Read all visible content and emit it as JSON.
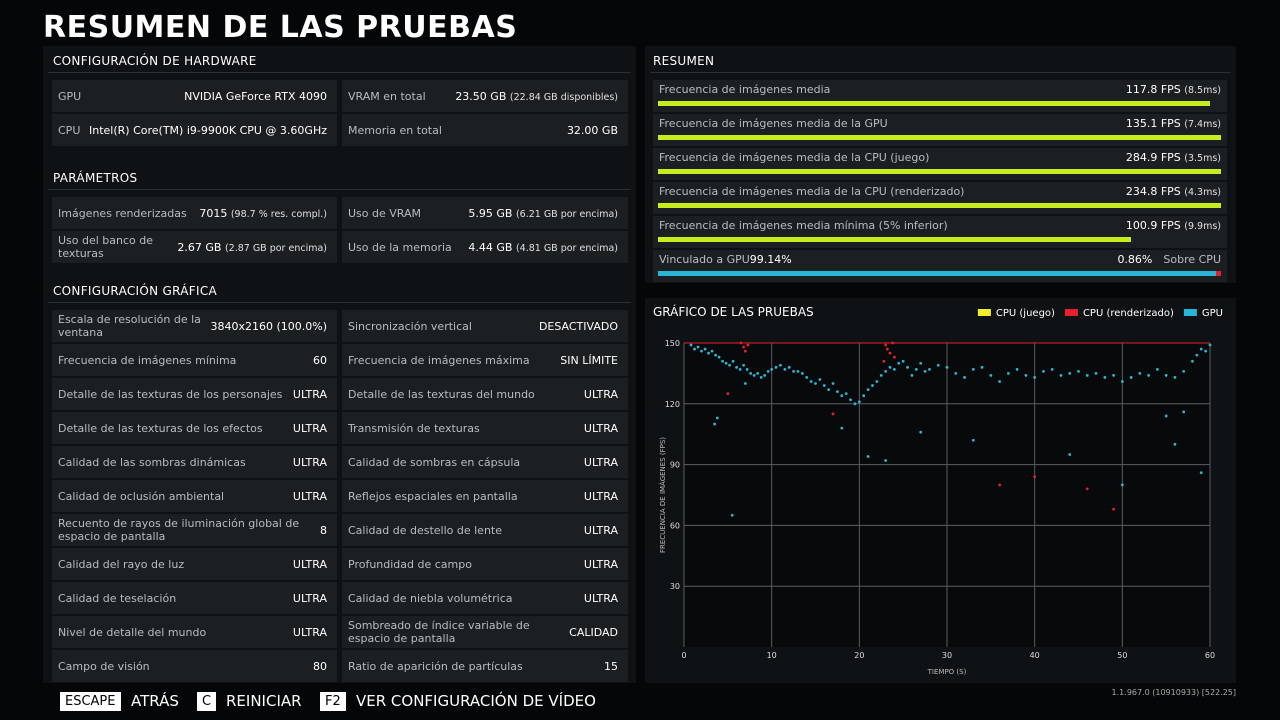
{
  "header": {
    "title": "RESUMEN DE LAS PRUEBAS"
  },
  "hardware": {
    "title": "CONFIGURACIÓN DE HARDWARE",
    "cells": [
      {
        "label": "GPU",
        "value": "NVIDIA GeForce RTX 4090"
      },
      {
        "label": "VRAM en total",
        "value": "23.50 GB",
        "note": "(22.84 GB disponibles)"
      },
      {
        "label": "CPU",
        "value": "Intel(R) Core(TM) i9-9900K CPU @ 3.60GHz"
      },
      {
        "label": "Memoria en total",
        "value": "32.00 GB"
      }
    ]
  },
  "parameters": {
    "title": "PARÁMETROS",
    "cells": [
      {
        "label": "Imágenes renderizadas",
        "value": "7015",
        "note": "(98.7 % res. compl.)"
      },
      {
        "label": "Uso de VRAM",
        "value": "5.95 GB",
        "note": "(6.21 GB por encima)"
      },
      {
        "label": "Uso del banco de texturas",
        "value": "2.67 GB",
        "note": "(2.87 GB por encima)"
      },
      {
        "label": "Uso de la memoria",
        "value": "4.44 GB",
        "note": "(4.81 GB por encima)"
      }
    ]
  },
  "graphics": {
    "title": "CONFIGURACIÓN GRÁFICA",
    "cells": [
      {
        "label": "Escala de resolución de la ventana",
        "value": "3840x2160 (100.0%)"
      },
      {
        "label": "Sincronización vertical",
        "value": "DESACTIVADO"
      },
      {
        "label": "Frecuencia de imágenes mínima",
        "value": "60"
      },
      {
        "label": "Frecuencia de imágenes máxima",
        "value": "SIN LÍMITE"
      },
      {
        "label": "Detalle de las texturas de los personajes",
        "value": "ULTRA"
      },
      {
        "label": "Detalle de las texturas del mundo",
        "value": "ULTRA"
      },
      {
        "label": "Detalle de las texturas de los efectos",
        "value": "ULTRA"
      },
      {
        "label": "Transmisión de texturas",
        "value": "ULTRA"
      },
      {
        "label": "Calidad de las sombras dinámicas",
        "value": "ULTRA"
      },
      {
        "label": "Calidad de sombras en cápsula",
        "value": "ULTRA"
      },
      {
        "label": "Calidad de oclusión ambiental",
        "value": "ULTRA"
      },
      {
        "label": "Reflejos espaciales en pantalla",
        "value": "ULTRA"
      },
      {
        "label": "Recuento de rayos de iluminación global de espacio de pantalla",
        "value": "8"
      },
      {
        "label": "Calidad de destello de lente",
        "value": "ULTRA"
      },
      {
        "label": "Calidad del rayo de luz",
        "value": "ULTRA"
      },
      {
        "label": "Profundidad de campo",
        "value": "ULTRA"
      },
      {
        "label": "Calidad de teselación",
        "value": "ULTRA"
      },
      {
        "label": "Calidad de niebla volumétrica",
        "value": "ULTRA"
      },
      {
        "label": "Nivel de detalle del mundo",
        "value": "ULTRA"
      },
      {
        "label": "Sombreado de índice variable de espacio de pantalla",
        "value": "CALIDAD"
      },
      {
        "label": "Campo de visión",
        "value": "80"
      },
      {
        "label": "Ratio de aparición de partículas",
        "value": "15"
      }
    ]
  },
  "summary": {
    "title": "RESUMEN",
    "rows": [
      {
        "label": "Frecuencia de imágenes media",
        "value": "117.8 FPS",
        "note": "(8.5ms)",
        "bar": 98
      },
      {
        "label": "Frecuencia de imágenes media de la GPU",
        "value": "135.1 FPS",
        "note": "(7.4ms)",
        "bar": 100
      },
      {
        "label": "Frecuencia de imágenes media de la CPU (juego)",
        "value": "284.9 FPS",
        "note": "(3.5ms)",
        "bar": 100
      },
      {
        "label": "Frecuencia de imágenes media de la CPU (renderizado)",
        "value": "234.8 FPS",
        "note": "(4.3ms)",
        "bar": 100
      },
      {
        "label": "Frecuencia de imágenes media mínima (5% inferior)",
        "value": "100.9 FPS",
        "note": "(9.9ms)",
        "bar": 84
      }
    ],
    "bound": {
      "gpu_label": "Vinculado a GPU",
      "gpu_value": 99.14,
      "gpu_value_label": "99.14%",
      "cpu_value": 0.86,
      "cpu_value_label": "0.86%",
      "cpu_label": "Sobre CPU"
    }
  },
  "chart_data": {
    "type": "scatter",
    "title": "GRÁFICO DE LAS PRUEBAS",
    "x_label": "TIEMPO (S)",
    "y_label": "FRECUENCIA DE IMÁGENES (FPS)",
    "xlim": [
      0,
      60
    ],
    "ylim": [
      0,
      150
    ],
    "xticks": [
      0,
      10,
      20,
      30,
      40,
      50,
      60
    ],
    "yticks": [
      30,
      60,
      90,
      120,
      150
    ],
    "grid": true,
    "series": [
      {
        "name": "CPU (juego)",
        "color": "#f2ee2a",
        "x": [],
        "values": []
      },
      {
        "name": "CPU (renderizado)",
        "color": "#e8202e",
        "x": [
          6.5,
          6.8,
          7,
          7.3,
          23,
          23.2,
          23.5,
          23.8,
          24,
          22.8,
          36,
          40,
          46,
          49,
          17,
          5
        ],
        "values": [
          150,
          148,
          146,
          149,
          149,
          147,
          145,
          150,
          143,
          141,
          80,
          84,
          78,
          68,
          115,
          125
        ]
      },
      {
        "name": "GPU",
        "color": "#29b6d6",
        "x": [
          0.8,
          1.2,
          1.6,
          2,
          2.4,
          2.8,
          3.2,
          3.6,
          4,
          4.4,
          4.8,
          5.2,
          5.6,
          6,
          6.4,
          6.8,
          7.2,
          7.6,
          8,
          8.4,
          8.8,
          9.2,
          9.6,
          10,
          10.5,
          11,
          11.5,
          12,
          12.5,
          13,
          13.5,
          14,
          14.5,
          15,
          15.5,
          16,
          16.5,
          17,
          17.5,
          18,
          18.5,
          19,
          19.5,
          20,
          20.5,
          21,
          21.5,
          22,
          22.5,
          23,
          23.5,
          24,
          24.5,
          25,
          25.5,
          26,
          26.5,
          27,
          27.5,
          28,
          29,
          30,
          31,
          32,
          33,
          34,
          35,
          36,
          37,
          38,
          39,
          40,
          41,
          42,
          43,
          44,
          45,
          46,
          47,
          48,
          49,
          50,
          51,
          52,
          53,
          54,
          55,
          56,
          57,
          58,
          58.5,
          59,
          59.5,
          60,
          3.8,
          3.5,
          7,
          18,
          21,
          23,
          27,
          33,
          44,
          50,
          55,
          56,
          57,
          59,
          5.5
        ],
        "values": [
          149,
          147,
          148,
          146,
          147,
          145,
          146,
          144,
          143,
          141,
          140,
          139,
          141,
          138,
          137,
          139,
          137,
          135,
          134,
          135,
          133,
          134,
          136,
          137,
          138,
          139,
          137,
          138,
          136,
          136,
          135,
          133,
          131,
          130,
          132,
          129,
          127,
          130,
          126,
          124,
          125,
          122,
          120,
          121,
          124,
          127,
          129,
          131,
          134,
          136,
          138,
          137,
          140,
          141,
          138,
          134,
          137,
          140,
          136,
          137,
          139,
          138,
          135,
          133,
          137,
          138,
          134,
          131,
          135,
          137,
          134,
          133,
          136,
          137,
          134,
          135,
          136,
          134,
          135,
          133,
          134,
          131,
          133,
          135,
          134,
          137,
          134,
          133,
          136,
          141,
          144,
          147,
          146,
          149,
          113,
          110,
          130,
          108,
          94,
          92,
          106,
          102,
          95,
          80,
          114,
          100,
          116,
          86,
          65
        ]
      }
    ]
  },
  "footer": {
    "keys": [
      {
        "key": "ESCAPE",
        "action": "ATRÁS"
      },
      {
        "key": "C",
        "action": "REINICIAR"
      },
      {
        "key": "F2",
        "action": "VER CONFIGURACIÓN DE VÍDEO"
      }
    ],
    "version": "1.1.967.0 (10910933) [522.25]"
  }
}
